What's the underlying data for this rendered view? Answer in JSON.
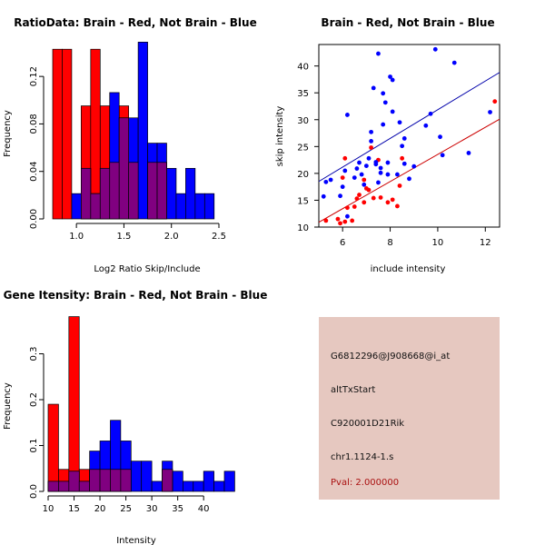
{
  "colors": {
    "red": "#ff0000",
    "blue": "#0000ff",
    "overlap": "#800080",
    "line_blue": "#0000aa",
    "line_red": "#cc0000",
    "panel_bg": "#e6c8c0"
  },
  "chart_data": [
    {
      "type": "histogram",
      "title": "RatioData: Brain - Red, Not Brain - Blue",
      "xlabel": "Log2 Ratio Skip/Include",
      "ylabel": "Frequency",
      "xlim": [
        0.75,
        2.5
      ],
      "ylim": [
        0,
        0.14
      ],
      "xticks": [
        "1.0",
        "1.5",
        "2.0",
        "2.5"
      ],
      "xtick_values": [
        1.0,
        1.5,
        2.0,
        2.5
      ],
      "yticks": [
        "0.00",
        "0.04",
        "0.08",
        "0.12"
      ],
      "ytick_values": [
        0,
        0.04,
        0.08,
        0.12
      ],
      "series": [
        {
          "name": "Brain",
          "color": "red",
          "bins": [
            [
              0.75,
              0.85,
              0.1429
            ],
            [
              0.85,
              0.95,
              0.1429
            ],
            [
              1.05,
              1.15,
              0.0952
            ],
            [
              1.15,
              1.25,
              0.1429
            ],
            [
              1.25,
              1.35,
              0.0952
            ],
            [
              1.35,
              1.45,
              0.0476
            ],
            [
              1.45,
              1.55,
              0.0952
            ],
            [
              1.55,
              1.65,
              0.0476
            ],
            [
              1.75,
              1.85,
              0.0476
            ],
            [
              1.85,
              1.95,
              0.0476
            ]
          ]
        },
        {
          "name": "Not Brain",
          "color": "blue",
          "bins": [
            [
              0.95,
              1.05,
              0.0213
            ],
            [
              1.05,
              1.15,
              0.0426
            ],
            [
              1.15,
              1.25,
              0.0213
            ],
            [
              1.25,
              1.35,
              0.0426
            ],
            [
              1.35,
              1.45,
              0.1064
            ],
            [
              1.45,
              1.55,
              0.0851
            ],
            [
              1.55,
              1.65,
              0.0851
            ],
            [
              1.65,
              1.75,
              0.1489
            ],
            [
              1.75,
              1.85,
              0.0638
            ],
            [
              1.85,
              1.95,
              0.0638
            ],
            [
              1.95,
              2.05,
              0.0426
            ],
            [
              2.05,
              2.15,
              0.0213
            ],
            [
              2.15,
              2.25,
              0.0426
            ],
            [
              2.25,
              2.35,
              0.0213
            ],
            [
              2.35,
              2.45,
              0.0213
            ]
          ]
        }
      ]
    },
    {
      "type": "scatter",
      "title": "Brain - Red, Not Brain - Blue",
      "xlabel": "include intensity",
      "ylabel": "skip intensity",
      "xlim": [
        5,
        12.6
      ],
      "ylim": [
        10,
        44
      ],
      "xticks": [
        "6",
        "8",
        "10",
        "12"
      ],
      "xtick_values": [
        6,
        8,
        10,
        12
      ],
      "yticks": [
        "10",
        "15",
        "20",
        "25",
        "30",
        "35",
        "40"
      ],
      "ytick_values": [
        10,
        15,
        20,
        25,
        30,
        35,
        40
      ],
      "series": [
        {
          "name": "Brain",
          "color": "red",
          "points": [
            [
              5.3,
              11.2
            ],
            [
              5.8,
              11.5
            ],
            [
              5.9,
              10.7
            ],
            [
              6.1,
              11.0
            ],
            [
              6.2,
              13.6
            ],
            [
              6.4,
              11.2
            ],
            [
              6.0,
              19.2
            ],
            [
              6.1,
              22.8
            ],
            [
              6.5,
              13.8
            ],
            [
              6.6,
              15.3
            ],
            [
              6.7,
              16.0
            ],
            [
              6.9,
              14.6
            ],
            [
              6.9,
              18.8
            ],
            [
              7.0,
              17.2
            ],
            [
              7.1,
              16.9
            ],
            [
              7.3,
              15.4
            ],
            [
              7.5,
              22.5
            ],
            [
              7.6,
              15.5
            ],
            [
              7.9,
              14.6
            ],
            [
              8.1,
              15.1
            ],
            [
              8.3,
              13.9
            ],
            [
              8.4,
              17.7
            ],
            [
              7.2,
              24.8
            ],
            [
              8.5,
              22.8
            ],
            [
              12.4,
              33.4
            ]
          ]
        },
        {
          "name": "Not Brain",
          "color": "blue",
          "points": [
            [
              5.2,
              15.7
            ],
            [
              5.3,
              18.4
            ],
            [
              5.5,
              18.8
            ],
            [
              5.9,
              15.8
            ],
            [
              6.0,
              17.5
            ],
            [
              6.1,
              20.5
            ],
            [
              6.2,
              12.0
            ],
            [
              6.2,
              30.9
            ],
            [
              6.5,
              19.2
            ],
            [
              6.6,
              20.9
            ],
            [
              6.7,
              22.0
            ],
            [
              6.8,
              19.8
            ],
            [
              6.9,
              17.9
            ],
            [
              7.0,
              21.4
            ],
            [
              7.1,
              22.8
            ],
            [
              7.2,
              26.0
            ],
            [
              7.2,
              27.7
            ],
            [
              7.3,
              35.9
            ],
            [
              7.4,
              22.1
            ],
            [
              7.5,
              18.3
            ],
            [
              7.6,
              20.1
            ],
            [
              7.6,
              21.0
            ],
            [
              7.7,
              29.1
            ],
            [
              7.7,
              34.9
            ],
            [
              7.8,
              33.2
            ],
            [
              7.9,
              22.0
            ],
            [
              7.9,
              19.8
            ],
            [
              8.0,
              38.0
            ],
            [
              8.1,
              37.4
            ],
            [
              8.1,
              31.5
            ],
            [
              8.3,
              19.8
            ],
            [
              8.4,
              29.5
            ],
            [
              8.5,
              25.1
            ],
            [
              8.6,
              26.5
            ],
            [
              8.6,
              21.8
            ],
            [
              8.8,
              19.0
            ],
            [
              9.0,
              21.3
            ],
            [
              7.4,
              21.7
            ],
            [
              7.5,
              42.3
            ],
            [
              9.5,
              28.9
            ],
            [
              9.7,
              31.1
            ],
            [
              9.9,
              43.1
            ],
            [
              10.1,
              26.8
            ],
            [
              10.2,
              23.4
            ],
            [
              10.7,
              40.6
            ],
            [
              11.3,
              23.8
            ],
            [
              12.2,
              31.4
            ]
          ]
        }
      ],
      "fit_lines": [
        {
          "name": "Not Brain fit",
          "color": "line_blue",
          "from": [
            5,
            18.5
          ],
          "to": [
            12.6,
            38.8
          ]
        },
        {
          "name": "Brain fit",
          "color": "line_red",
          "from": [
            5,
            10.9
          ],
          "to": [
            12.6,
            30.1
          ]
        }
      ]
    },
    {
      "type": "histogram",
      "title": "Gene Itensity: Brain - Red, Not Brain - Blue",
      "xlabel": "Intensity",
      "ylabel": "Frequency",
      "xlim": [
        10,
        44
      ],
      "ylim": [
        0,
        0.4
      ],
      "xticks": [
        "10",
        "15",
        "20",
        "25",
        "30",
        "35",
        "40"
      ],
      "xtick_values": [
        10,
        15,
        20,
        25,
        30,
        35,
        40
      ],
      "yticks": [
        "0.0",
        "0.1",
        "0.2",
        "0.3"
      ],
      "ytick_values": [
        0,
        0.1,
        0.2,
        0.3
      ],
      "series": [
        {
          "name": "Brain",
          "color": "red",
          "bins": [
            [
              10,
              12,
              0.19
            ],
            [
              12,
              14,
              0.048
            ],
            [
              14,
              16,
              0.381
            ],
            [
              16,
              18,
              0.048
            ],
            [
              18,
              20,
              0.048
            ],
            [
              20,
              22,
              0.048
            ],
            [
              22,
              24,
              0.048
            ],
            [
              24,
              26,
              0.048
            ],
            [
              32,
              34,
              0.048
            ]
          ]
        },
        {
          "name": "Not Brain",
          "color": "blue",
          "bins": [
            [
              10,
              12,
              0.022
            ],
            [
              12,
              14,
              0.022
            ],
            [
              14,
              16,
              0.044
            ],
            [
              16,
              18,
              0.022
            ],
            [
              18,
              20,
              0.088
            ],
            [
              20,
              22,
              0.11
            ],
            [
              22,
              24,
              0.155
            ],
            [
              24,
              26,
              0.11
            ],
            [
              26,
              28,
              0.066
            ],
            [
              28,
              30,
              0.066
            ],
            [
              30,
              32,
              0.022
            ],
            [
              32,
              34,
              0.066
            ],
            [
              34,
              36,
              0.044
            ],
            [
              36,
              38,
              0.022
            ],
            [
              38,
              40,
              0.022
            ],
            [
              40,
              42,
              0.044
            ],
            [
              42,
              44,
              0.022
            ],
            [
              44,
              46,
              0.044
            ]
          ]
        }
      ]
    }
  ],
  "info_panel": {
    "probe_id": "G6812296@J908668@i_at",
    "event_type": "altTxStart",
    "gene": "C920001D21Rik",
    "location": "chr1.1124-1.s",
    "pval": "Pval: 2.000000"
  }
}
